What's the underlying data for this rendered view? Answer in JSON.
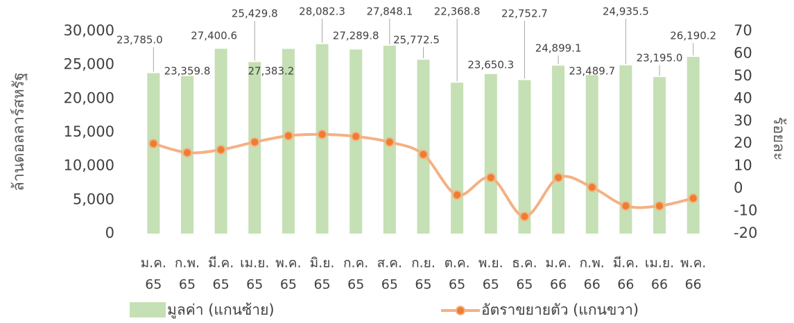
{
  "chart_data": {
    "type": "bar_line",
    "categories": [
      [
        "ม.ค.",
        "65"
      ],
      [
        "ก.พ.",
        "65"
      ],
      [
        "มี.ค.",
        "65"
      ],
      [
        "เม.ย.",
        "65"
      ],
      [
        "พ.ค.",
        "65"
      ],
      [
        "มิ.ย.",
        "65"
      ],
      [
        "ก.ค.",
        "65"
      ],
      [
        "ส.ค.",
        "65"
      ],
      [
        "ก.ย.",
        "65"
      ],
      [
        "ต.ค.",
        "65"
      ],
      [
        "พ.ย.",
        "65"
      ],
      [
        "ธ.ค.",
        "65"
      ],
      [
        "ม.ค.",
        "66"
      ],
      [
        "ก.พ.",
        "66"
      ],
      [
        "มี.ค.",
        "66"
      ],
      [
        "เม.ย.",
        "66"
      ],
      [
        "พ.ค.",
        "66"
      ]
    ],
    "series": [
      {
        "name": "มูลค่า (แกนซ้าย)",
        "type": "bar",
        "axis": "y",
        "color": "#c5e0b4",
        "values": [
          23785.0,
          23359.8,
          27400.6,
          25429.8,
          27383.2,
          28082.3,
          27289.8,
          27848.1,
          25772.5,
          22368.8,
          23650.3,
          22752.7,
          24899.1,
          23489.7,
          24935.5,
          23195.0,
          26190.2
        ],
        "value_labels": [
          "23,785.0",
          "23,359.8",
          "27,400.6",
          "25,429.8",
          "27,383.2",
          "28,082.3",
          "27,289.8",
          "27,848.1",
          "25,772.5",
          "22,368.8",
          "23,650.3",
          "22,752.7",
          "24,899.1",
          "23,489.7",
          "24,935.5",
          "23,195.0",
          "26,190.2"
        ]
      },
      {
        "name": "อัตราขยายตัว (แกนขวา)",
        "type": "line",
        "axis": "y2",
        "color": "#f4b183",
        "marker_color": "#ed7d31",
        "values": [
          20,
          16,
          17.3,
          20.7,
          23.5,
          24.1,
          23.2,
          20.7,
          15.2,
          -2.8,
          4.9,
          -12.4,
          4.9,
          0.6,
          -7.7,
          -7.7,
          -4.3
        ]
      }
    ],
    "ylabel": "ล้านดอลลาร์สหรัฐ",
    "y2label": "ร้อยละ",
    "ylim": [
      0,
      30000
    ],
    "yticks": [
      0,
      {
        "value": 5000,
        "label": "5,000"
      },
      {
        "value": 10000,
        "label": "10,000"
      },
      {
        "value": 15000,
        "label": "15,000"
      },
      {
        "value": 20000,
        "label": "20,000"
      },
      {
        "value": 25000,
        "label": "25,000"
      },
      {
        "value": 30000,
        "label": "30,000"
      }
    ],
    "y2lim": [
      -20,
      70
    ],
    "y2ticks": [
      -20,
      -10,
      0,
      10,
      20,
      30,
      40,
      50,
      60,
      70
    ],
    "legend": "bottom"
  }
}
